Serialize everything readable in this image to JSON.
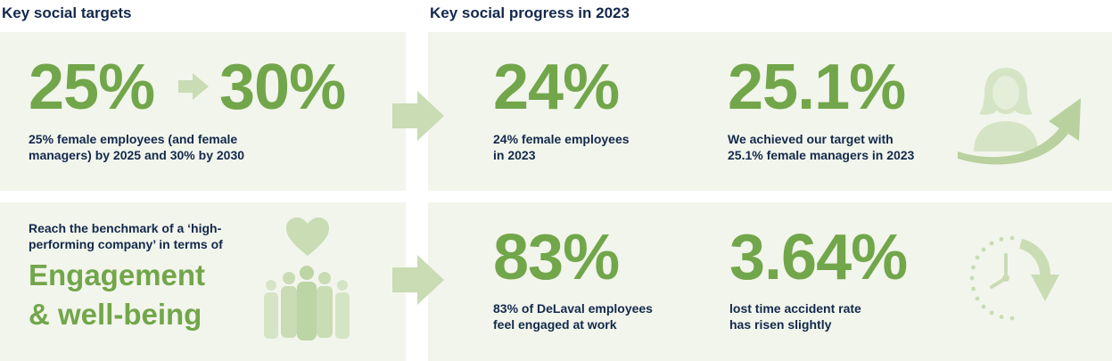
{
  "headings": {
    "targets": "Key social targets",
    "progress": "Key social progress in 2023"
  },
  "targets": {
    "female": {
      "from_value": "25%",
      "to_value": "30%",
      "description_line1": "25% female employees (and female",
      "description_line2": "managers) by 2025 and 30% by 2030"
    },
    "engagement": {
      "intro_line1": "Reach the benchmark of a ‘high-",
      "intro_line2": "performing company’ in terms of",
      "highlight_line1": "Engagement",
      "highlight_line2": "& well-being"
    }
  },
  "progress": {
    "female_employees": {
      "value": "24%",
      "description_line1": "24% female employees",
      "description_line2": "in 2023"
    },
    "female_managers": {
      "value": "25.1%",
      "description_line1": "We achieved our target with",
      "description_line2": "25.1% female managers in 2023"
    },
    "engagement": {
      "value": "83%",
      "description_line1": "83% of DeLaval employees",
      "description_line2": "feel engaged at work"
    },
    "accident_rate": {
      "value": "3.64%",
      "description_line1": "lost time accident rate",
      "description_line2": "has risen slightly"
    }
  },
  "icons": {
    "small_arrow": "arrow-right-icon",
    "flow_arrows": "arrow-right-icon",
    "woman": "woman-silhouette-icon",
    "growth_arrow": "upward-trend-arrow-icon",
    "heart": "heart-icon",
    "people": "people-group-icon",
    "clock": "clock-icon"
  },
  "colors": {
    "brand_green": "#72a64a",
    "light_green": "#c9dcb4",
    "panel_bg": "#f2f5ec",
    "navy": "#13294b"
  }
}
